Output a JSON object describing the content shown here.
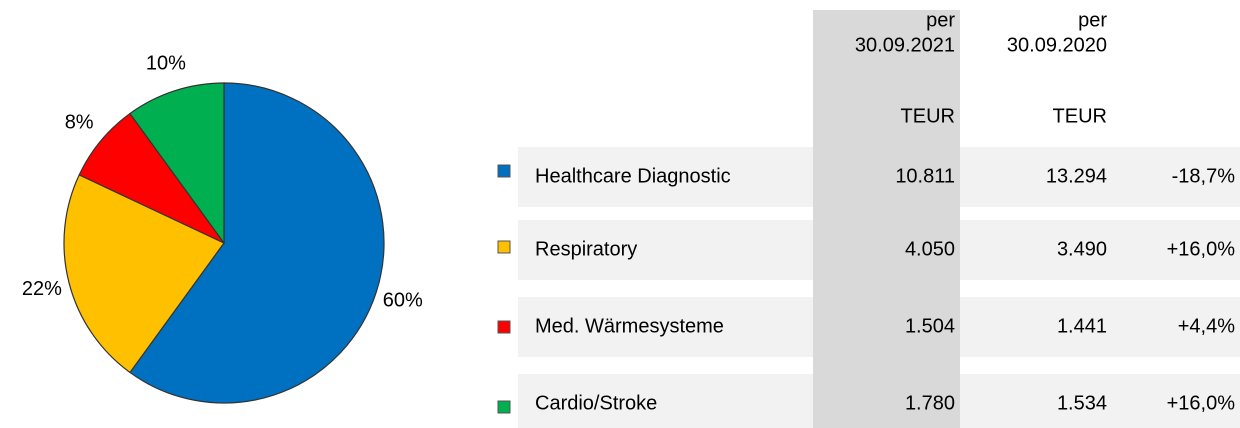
{
  "chart_data": {
    "type": "pie",
    "categories": [
      "Healthcare Diagnostic",
      "Respiratory",
      "Med. Wärmesysteme",
      "Cardio/Stroke"
    ],
    "values": [
      60,
      22,
      8,
      10
    ],
    "value_labels": [
      "60%",
      "22%",
      "8%",
      "10%"
    ],
    "colors": [
      "#0070c0",
      "#ffc000",
      "#ff0000",
      "#00b050"
    ]
  },
  "table": {
    "columns": [
      {
        "line1": "per",
        "line2": "30.09.2021",
        "unit": "TEUR"
      },
      {
        "line1": "per",
        "line2": "30.09.2020",
        "unit": "TEUR"
      }
    ],
    "rows": [
      [
        "10.811",
        "13.294",
        "-18,7%"
      ],
      [
        "4.050",
        "3.490",
        "+16,0%"
      ],
      [
        "1.504",
        "1.441",
        "+4,4%"
      ],
      [
        "1.780",
        "1.534",
        "+16,0%"
      ]
    ]
  }
}
